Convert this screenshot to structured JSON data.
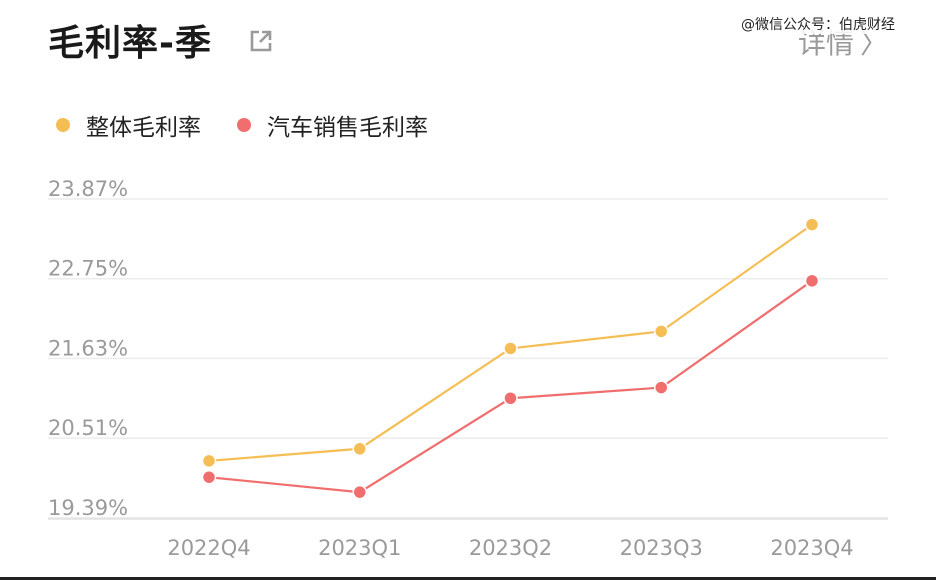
{
  "header": {
    "title": "毛利率-季",
    "details_label": "详情",
    "watermark": "@微信公众号：伯虎财经"
  },
  "icons": {
    "external": "external-link-icon",
    "chevron": "chevron-right-icon"
  },
  "chart_data": {
    "type": "line",
    "categories": [
      "2022Q4",
      "2023Q1",
      "2023Q2",
      "2023Q3",
      "2023Q4"
    ],
    "series": [
      {
        "name": "整体毛利率",
        "color": "#f5be55",
        "values": [
          20.19,
          20.36,
          21.77,
          22.01,
          23.51
        ]
      },
      {
        "name": "汽车销售毛利率",
        "color": "#f06e6e",
        "values": [
          19.96,
          19.75,
          21.07,
          21.22,
          22.72
        ]
      }
    ],
    "yticks": [
      "23.87%",
      "22.75%",
      "21.63%",
      "20.51%",
      "19.39%"
    ],
    "ytick_values": [
      23.87,
      22.75,
      21.63,
      20.51,
      19.39
    ],
    "ylim": [
      19.2,
      23.87
    ],
    "legend_position": "top-left",
    "grid": true
  }
}
